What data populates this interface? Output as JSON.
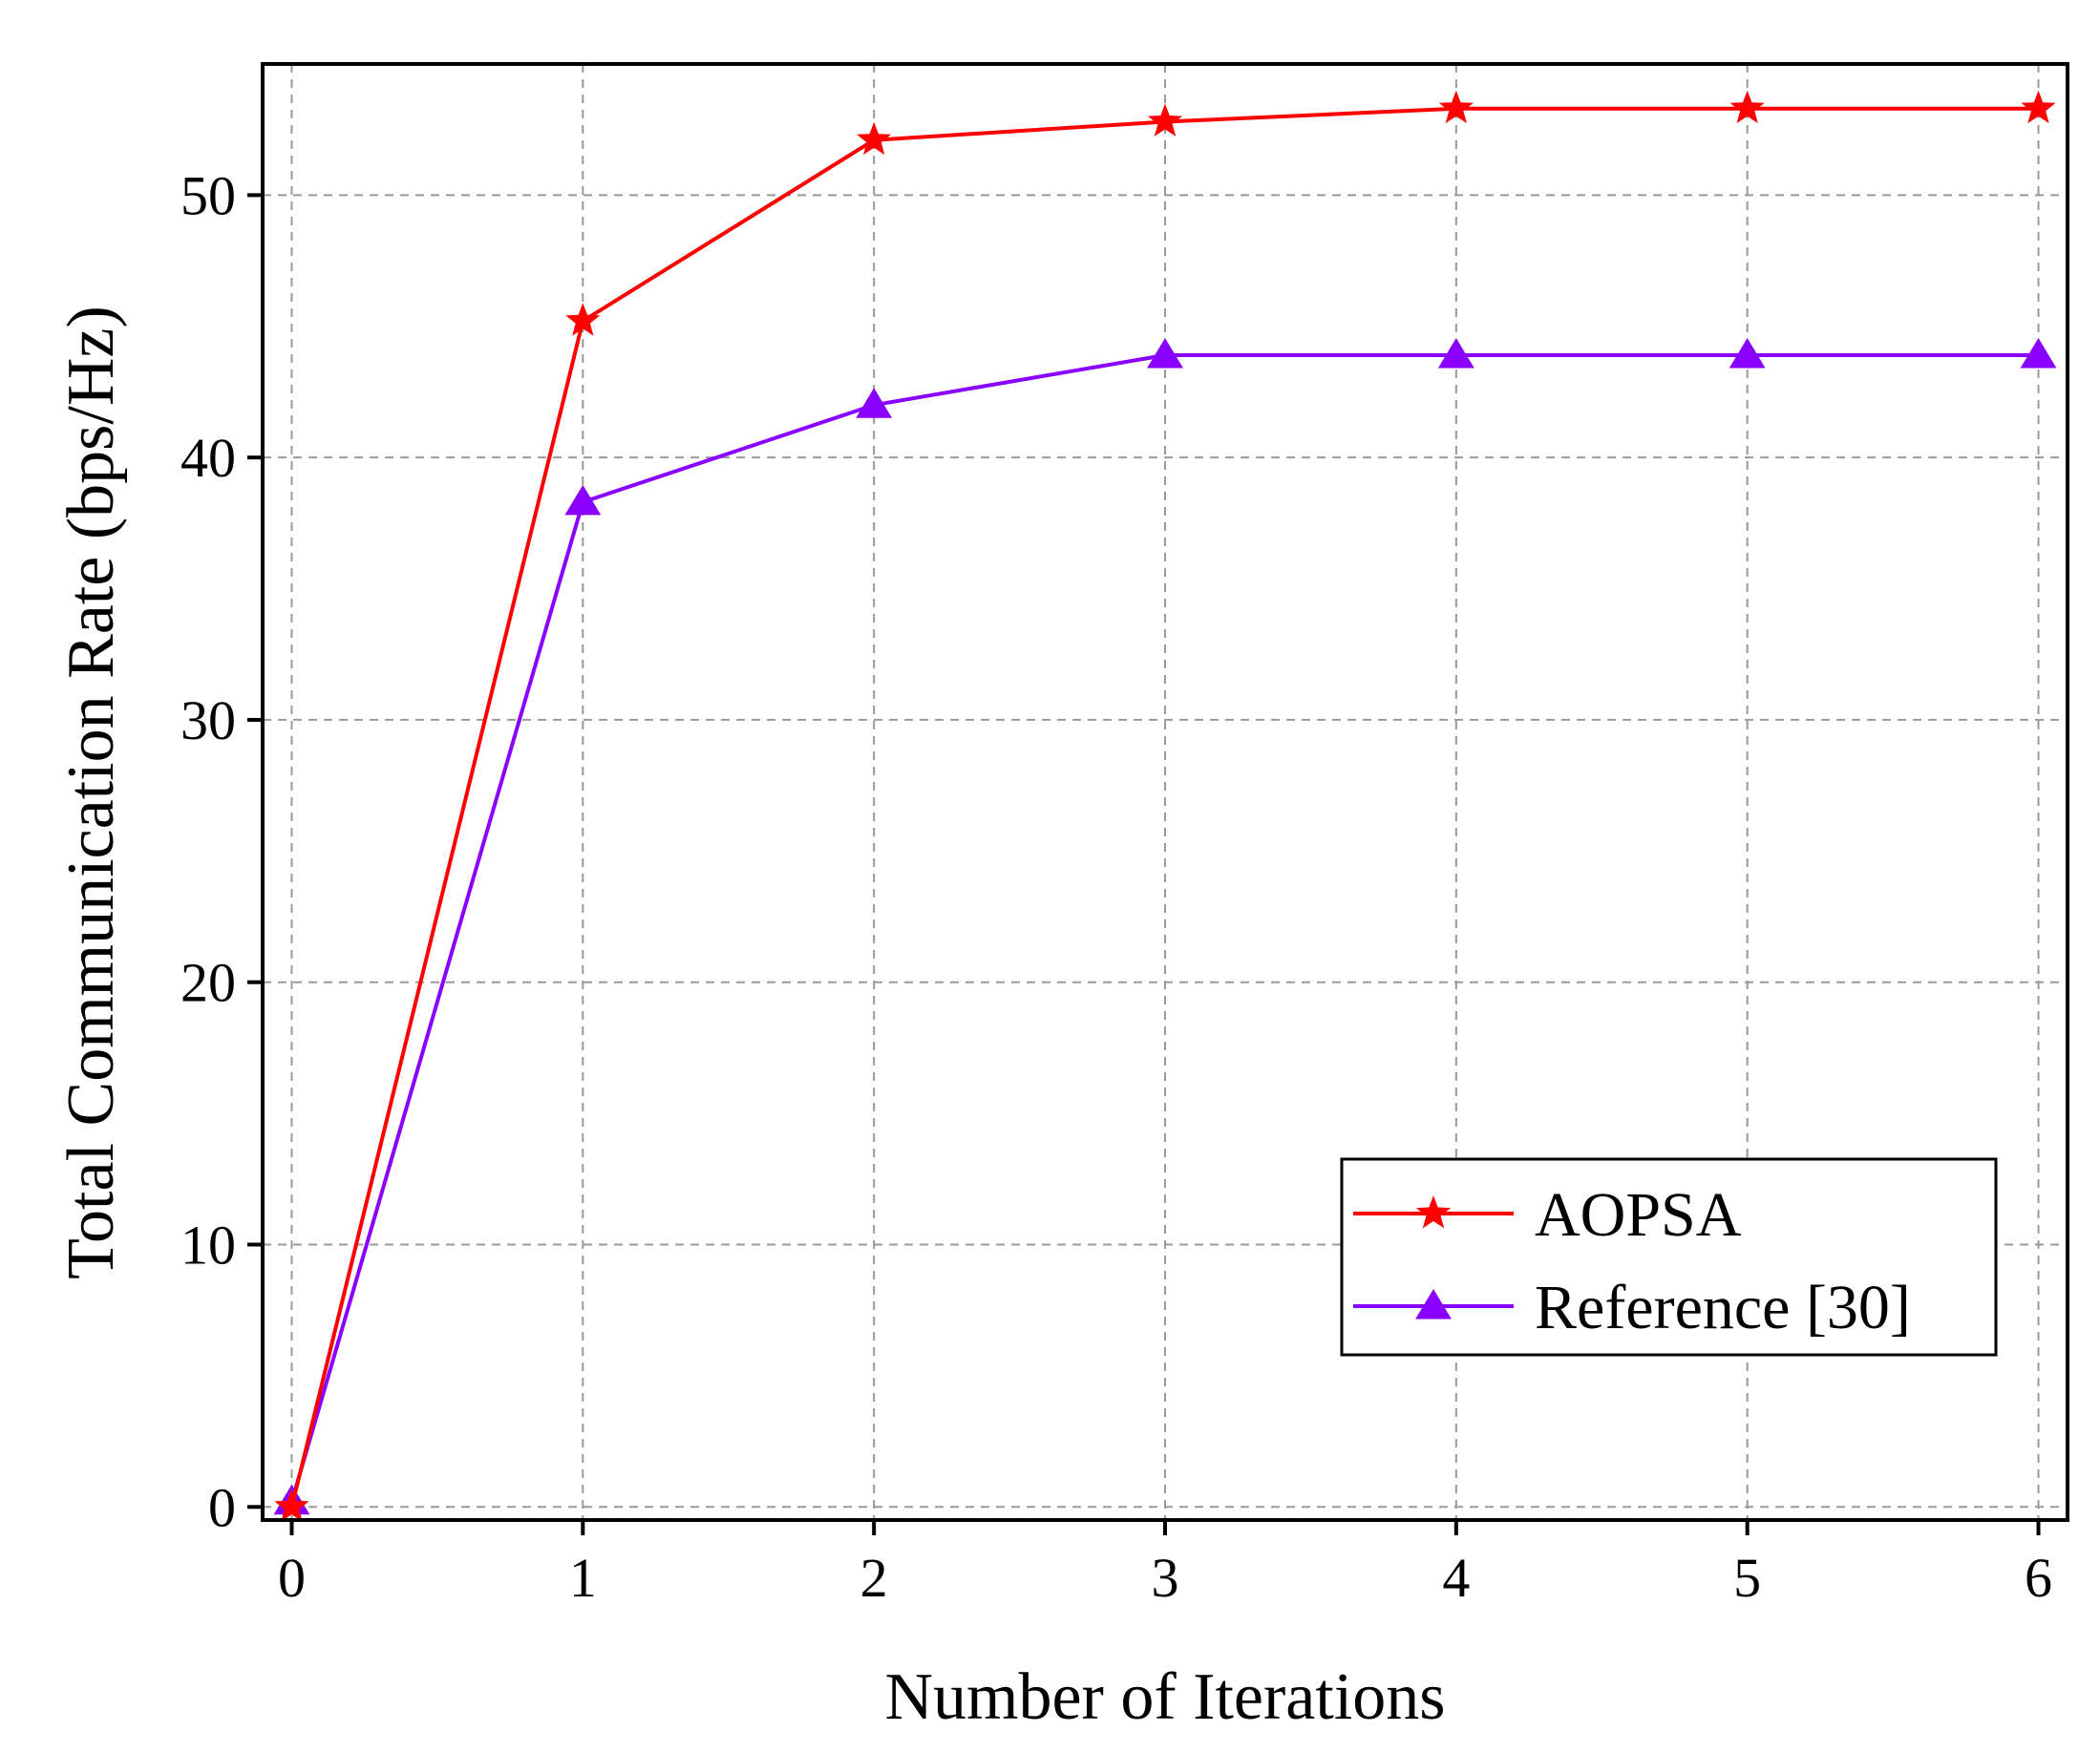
{
  "chart_data": {
    "type": "line",
    "title": "",
    "xlabel": "Number of Iterations",
    "ylabel": "Total Communication Rate (bps/Hz)",
    "x": [
      0,
      1,
      2,
      3,
      4,
      5,
      6
    ],
    "xlim": [
      -0.1,
      6.1
    ],
    "ylim": [
      -0.5,
      55
    ],
    "xticks": [
      0,
      1,
      2,
      3,
      4,
      5,
      6
    ],
    "yticks": [
      0,
      10,
      20,
      30,
      40,
      50
    ],
    "xtick_labels": [
      "0",
      "1",
      "2",
      "3",
      "4",
      "5",
      "6"
    ],
    "ytick_labels": [
      "0",
      "10",
      "20",
      "30",
      "40",
      "50"
    ],
    "grid": true,
    "legend_position": "bottom-right",
    "series": [
      {
        "name": "AOPSA",
        "color": "#ff0000",
        "marker": "star",
        "values": [
          0,
          45.2,
          52.1,
          52.8,
          53.3,
          53.3,
          53.3
        ]
      },
      {
        "name": "Reference [30]",
        "color": "#8a00ff",
        "marker": "triangle",
        "values": [
          0.2,
          38.3,
          42.0,
          43.9,
          43.9,
          43.9,
          43.9
        ]
      }
    ]
  }
}
